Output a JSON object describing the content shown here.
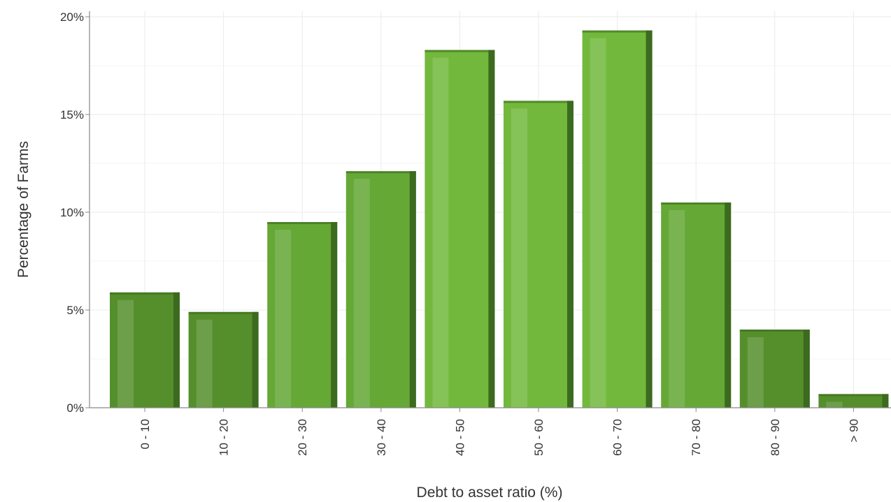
{
  "chart_data": {
    "type": "bar",
    "title": "",
    "xlabel": "Debt to asset ratio (%)",
    "ylabel": "Percentage of Farms",
    "categories": [
      "0 - 10",
      "10 - 20",
      "20 - 30",
      "30 - 40",
      "40 - 50",
      "50 - 60",
      "60 - 70",
      "70 - 80",
      "80 - 90",
      "> 90"
    ],
    "values": [
      5.9,
      4.9,
      9.5,
      12.1,
      18.3,
      15.7,
      19.3,
      10.5,
      4.0,
      0.7
    ],
    "value_unit": "%",
    "ylim": [
      0,
      20
    ],
    "yticks": [
      0,
      5,
      10,
      15,
      20
    ],
    "ytick_labels": [
      "0%",
      "5%",
      "10%",
      "15%",
      "20%"
    ],
    "grid": true,
    "legend": "none",
    "colors": {
      "bar_light": "#72b83c",
      "bar_mid": "#65a836",
      "bar_dark": "#558f2c",
      "bar_edge": "#3c6a1e",
      "grid": "#ebebeb",
      "axis": "#888888",
      "text": "#333333"
    }
  }
}
